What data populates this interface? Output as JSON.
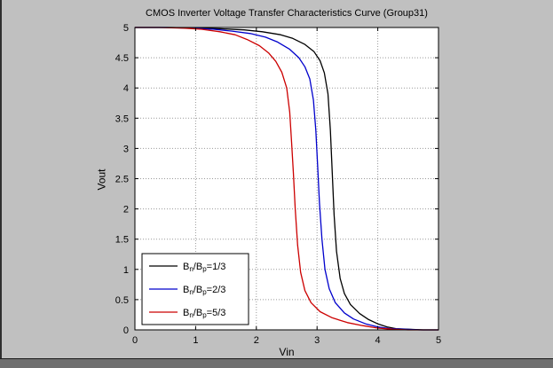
{
  "window": {
    "background": "#c0c0c0",
    "bottom_strip_color": "#6f6f6f",
    "edge_color": "#2f2f2f"
  },
  "chart_data": {
    "type": "line",
    "title": "CMOS Inverter Voltage Transfer Characteristics Curve (Group31)",
    "xlabel": "Vin",
    "ylabel": "Vout",
    "xlim": [
      0,
      5
    ],
    "ylim": [
      0,
      5
    ],
    "x_ticks": [
      0,
      1,
      2,
      3,
      4,
      5
    ],
    "y_ticks": [
      0,
      0.5,
      1,
      1.5,
      2,
      2.5,
      3,
      3.5,
      4,
      4.5,
      5
    ],
    "grid": true,
    "grid_color": "#999999",
    "axis_color": "#000000",
    "plot_bg": "#ffffff",
    "legend_position": "southwest",
    "series": [
      {
        "name": "B_n/B_p=1/3",
        "color": "#000000",
        "x": [
          0,
          0.6,
          1.0,
          1.4,
          1.8,
          2.1,
          2.4,
          2.6,
          2.8,
          2.95,
          3.05,
          3.12,
          3.18,
          3.22,
          3.25,
          3.28,
          3.32,
          3.38,
          3.45,
          3.55,
          3.7,
          3.85,
          4.0,
          4.15,
          4.3,
          4.5,
          4.75,
          5
        ],
        "y": [
          5,
          5,
          4.99,
          4.98,
          4.96,
          4.93,
          4.88,
          4.82,
          4.72,
          4.6,
          4.45,
          4.25,
          3.9,
          3.3,
          2.6,
          1.9,
          1.3,
          0.85,
          0.6,
          0.42,
          0.27,
          0.17,
          0.1,
          0.05,
          0.02,
          0.01,
          0,
          0
        ]
      },
      {
        "name": "B_n/B_p=2/3",
        "color": "#0000cc",
        "x": [
          0,
          0.5,
          0.9,
          1.3,
          1.6,
          1.9,
          2.15,
          2.35,
          2.55,
          2.7,
          2.8,
          2.88,
          2.94,
          2.98,
          3.01,
          3.04,
          3.08,
          3.13,
          3.2,
          3.3,
          3.45,
          3.6,
          3.8,
          4.0,
          4.2,
          4.45,
          4.7,
          5
        ],
        "y": [
          5,
          5,
          4.99,
          4.97,
          4.94,
          4.9,
          4.84,
          4.76,
          4.64,
          4.5,
          4.35,
          4.15,
          3.8,
          3.3,
          2.7,
          2.1,
          1.5,
          1.0,
          0.68,
          0.45,
          0.28,
          0.18,
          0.1,
          0.05,
          0.02,
          0.01,
          0,
          0
        ]
      },
      {
        "name": "B_n/B_p=5/3",
        "color": "#cc0000",
        "x": [
          0,
          0.4,
          0.8,
          1.1,
          1.4,
          1.65,
          1.85,
          2.05,
          2.2,
          2.32,
          2.42,
          2.5,
          2.55,
          2.58,
          2.61,
          2.64,
          2.68,
          2.73,
          2.8,
          2.9,
          3.05,
          3.25,
          3.5,
          3.75,
          4.0,
          4.25,
          4.5,
          5
        ],
        "y": [
          5,
          5,
          4.99,
          4.97,
          4.93,
          4.88,
          4.8,
          4.7,
          4.58,
          4.44,
          4.26,
          4.0,
          3.6,
          3.1,
          2.6,
          2.0,
          1.4,
          0.95,
          0.65,
          0.45,
          0.3,
          0.2,
          0.12,
          0.07,
          0.03,
          0.01,
          0,
          0
        ]
      }
    ]
  }
}
